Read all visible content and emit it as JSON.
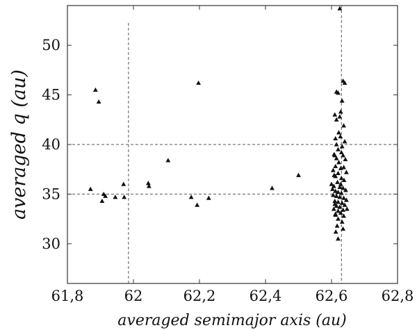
{
  "chart_data": {
    "type": "scatter",
    "xlabel": "averaged semimajor axis (au)",
    "ylabel": "averaged  q (au)",
    "xlim": [
      61.8,
      62.8
    ],
    "ylim": [
      26.0,
      54.0
    ],
    "xticks": [
      61.8,
      62.0,
      62.2,
      62.4,
      62.6,
      62.8
    ],
    "xtick_labels": [
      "61,8",
      "62",
      "62,2",
      "62,4",
      "62,6",
      "62,8"
    ],
    "yticks": [
      30,
      35,
      40,
      45,
      50
    ],
    "ytick_labels": [
      "30",
      "35",
      "40",
      "45",
      "50"
    ],
    "marker": "triangle",
    "grid": false,
    "reference_lines": {
      "vertical_x": [
        61.985,
        62.63
      ],
      "horizontal_y": [
        35.0,
        40.0
      ]
    },
    "points": [
      [
        61.87,
        35.5
      ],
      [
        61.885,
        45.5
      ],
      [
        61.895,
        44.3
      ],
      [
        61.905,
        34.3
      ],
      [
        61.91,
        35.0
      ],
      [
        61.915,
        34.8
      ],
      [
        61.945,
        34.7
      ],
      [
        61.97,
        36.0
      ],
      [
        61.972,
        34.7
      ],
      [
        62.045,
        36.1
      ],
      [
        62.047,
        35.8
      ],
      [
        62.105,
        38.4
      ],
      [
        62.175,
        34.7
      ],
      [
        62.193,
        33.9
      ],
      [
        62.197,
        46.2
      ],
      [
        62.228,
        34.6
      ],
      [
        62.42,
        35.6
      ],
      [
        62.5,
        36.9
      ],
      [
        62.625,
        53.7
      ],
      [
        62.635,
        46.4
      ],
      [
        62.64,
        46.2
      ],
      [
        62.615,
        45.3
      ],
      [
        62.62,
        45.2
      ],
      [
        62.632,
        44.4
      ],
      [
        62.628,
        43.3
      ],
      [
        62.61,
        43.0
      ],
      [
        62.615,
        42.5
      ],
      [
        62.625,
        42.8
      ],
      [
        62.637,
        41.9
      ],
      [
        62.612,
        40.6
      ],
      [
        62.627,
        40.8
      ],
      [
        62.64,
        40.3
      ],
      [
        62.632,
        39.8
      ],
      [
        62.62,
        39.5
      ],
      [
        62.608,
        39.0
      ],
      [
        62.615,
        38.6
      ],
      [
        62.635,
        38.9
      ],
      [
        62.642,
        38.5
      ],
      [
        62.622,
        38.2
      ],
      [
        62.612,
        37.8
      ],
      [
        62.628,
        37.6
      ],
      [
        62.637,
        37.7
      ],
      [
        62.605,
        37.4
      ],
      [
        62.62,
        37.1
      ],
      [
        62.645,
        37.2
      ],
      [
        62.612,
        36.8
      ],
      [
        62.63,
        36.6
      ],
      [
        62.638,
        36.4
      ],
      [
        62.618,
        36.2
      ],
      [
        62.6,
        36.0
      ],
      [
        62.607,
        35.8
      ],
      [
        62.625,
        35.7
      ],
      [
        62.635,
        35.6
      ],
      [
        62.643,
        35.4
      ],
      [
        62.612,
        35.3
      ],
      [
        62.62,
        35.2
      ],
      [
        62.63,
        35.1
      ],
      [
        62.605,
        34.9
      ],
      [
        62.615,
        34.8
      ],
      [
        62.625,
        34.7
      ],
      [
        62.637,
        34.6
      ],
      [
        62.645,
        34.4
      ],
      [
        62.61,
        34.3
      ],
      [
        62.62,
        34.2
      ],
      [
        62.632,
        34.1
      ],
      [
        62.64,
        33.9
      ],
      [
        62.615,
        33.8
      ],
      [
        62.625,
        33.7
      ],
      [
        62.607,
        33.5
      ],
      [
        62.635,
        33.4
      ],
      [
        62.647,
        33.5
      ],
      [
        62.62,
        33.3
      ],
      [
        62.628,
        33.1
      ],
      [
        62.612,
        32.9
      ],
      [
        62.637,
        32.8
      ],
      [
        62.62,
        32.5
      ],
      [
        62.632,
        32.2
      ],
      [
        62.617,
        31.8
      ],
      [
        62.635,
        31.5
      ],
      [
        62.613,
        31.2
      ],
      [
        62.62,
        30.5
      ],
      [
        62.608,
        36.9
      ],
      [
        62.61,
        34.0
      ],
      [
        62.603,
        35.5
      ],
      [
        62.628,
        36.0
      ],
      [
        62.615,
        40.0
      ],
      [
        62.61,
        38.9
      ],
      [
        62.63,
        39.2
      ],
      [
        62.622,
        41.2
      ],
      [
        62.612,
        33.0
      ]
    ]
  }
}
